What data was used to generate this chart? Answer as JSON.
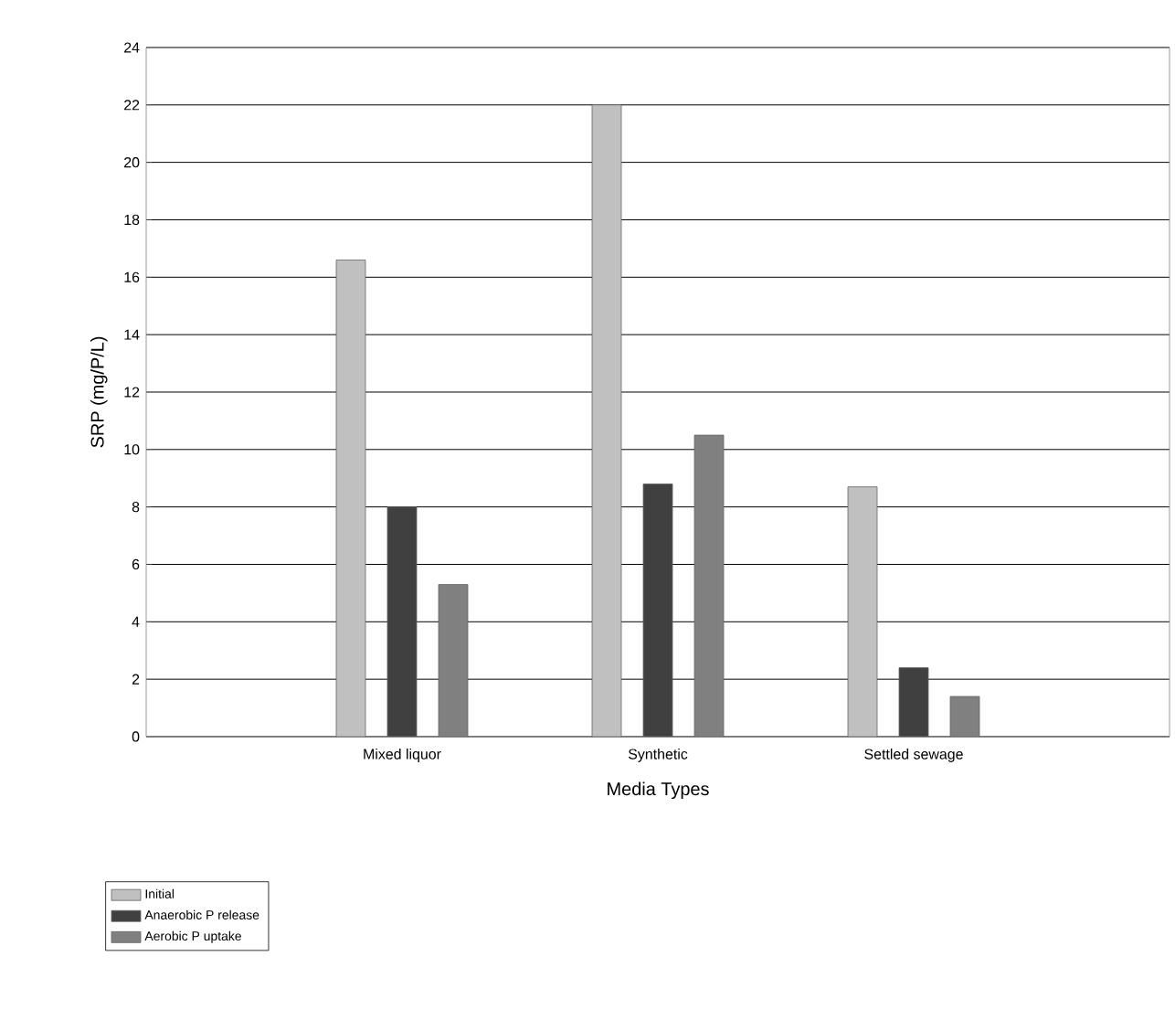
{
  "chart_data": {
    "type": "bar",
    "xlabel": "Media Types",
    "ylabel": "SRP (mg/P/L)",
    "categories": [
      "Mixed liquor",
      "Synthetic",
      "Settled sewage"
    ],
    "series": [
      {
        "name": "Initial",
        "color": "#c0c0c0",
        "values": [
          16.6,
          22.0,
          8.7
        ]
      },
      {
        "name": "Anaerobic P release",
        "color": "#404040",
        "values": [
          8.0,
          8.8,
          2.4
        ]
      },
      {
        "name": "Aerobic P uptake",
        "color": "#808080",
        "values": [
          5.3,
          10.5,
          1.4
        ]
      }
    ],
    "ylim": [
      0,
      24
    ],
    "yticks": [
      0,
      2,
      4,
      6,
      8,
      10,
      12,
      14,
      16,
      18,
      20,
      22,
      24
    ],
    "grid": "y",
    "legend": "bottom left"
  }
}
